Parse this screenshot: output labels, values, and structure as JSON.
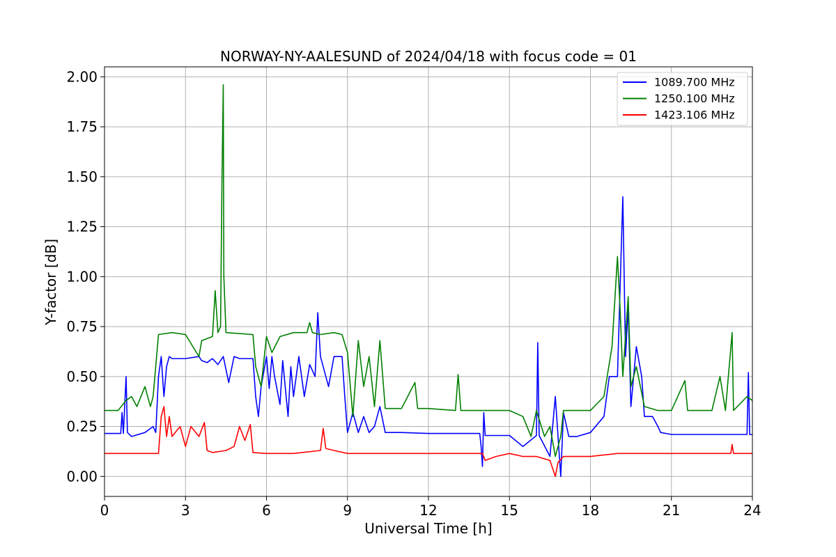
{
  "chart_data": {
    "type": "line",
    "title": "NORWAY-NY-AALESUND of 2024/04/18 with focus code = 01",
    "xlabel": "Universal Time [h]",
    "ylabel": "Y-factor [dB]",
    "xlim": [
      0,
      24
    ],
    "ylim": [
      -0.1,
      2.05
    ],
    "xticks": [
      0,
      3,
      6,
      9,
      12,
      15,
      18,
      21,
      24
    ],
    "xtick_labels": [
      "0",
      "3",
      "6",
      "9",
      "12",
      "15",
      "18",
      "21",
      "24"
    ],
    "yticks": [
      0.0,
      0.25,
      0.5,
      0.75,
      1.0,
      1.25,
      1.5,
      1.75,
      2.0
    ],
    "ytick_labels": [
      "0.00",
      "0.25",
      "0.50",
      "0.75",
      "1.00",
      "1.25",
      "1.50",
      "1.75",
      "2.00"
    ],
    "grid": true,
    "legend_position": "top-right",
    "series": [
      {
        "name": "1089.700 MHz",
        "color": "#0000ff",
        "points": [
          [
            0,
            0.215
          ],
          [
            0.6,
            0.215
          ],
          [
            0.65,
            0.32
          ],
          [
            0.7,
            0.215
          ],
          [
            0.8,
            0.5
          ],
          [
            0.85,
            0.22
          ],
          [
            1.0,
            0.2
          ],
          [
            1.5,
            0.22
          ],
          [
            1.8,
            0.25
          ],
          [
            1.9,
            0.22
          ],
          [
            2.0,
            0.5
          ],
          [
            2.1,
            0.6
          ],
          [
            2.2,
            0.4
          ],
          [
            2.3,
            0.55
          ],
          [
            2.4,
            0.6
          ],
          [
            2.5,
            0.59
          ],
          [
            3.0,
            0.59
          ],
          [
            3.5,
            0.6
          ],
          [
            3.6,
            0.58
          ],
          [
            3.8,
            0.57
          ],
          [
            4.0,
            0.59
          ],
          [
            4.2,
            0.56
          ],
          [
            4.4,
            0.6
          ],
          [
            4.6,
            0.47
          ],
          [
            4.8,
            0.6
          ],
          [
            5.0,
            0.59
          ],
          [
            5.5,
            0.59
          ],
          [
            5.6,
            0.4
          ],
          [
            5.7,
            0.3
          ],
          [
            5.8,
            0.45
          ],
          [
            6.0,
            0.6
          ],
          [
            6.1,
            0.44
          ],
          [
            6.2,
            0.6
          ],
          [
            6.3,
            0.5
          ],
          [
            6.5,
            0.36
          ],
          [
            6.6,
            0.58
          ],
          [
            6.8,
            0.3
          ],
          [
            6.9,
            0.55
          ],
          [
            7.0,
            0.4
          ],
          [
            7.2,
            0.6
          ],
          [
            7.4,
            0.4
          ],
          [
            7.6,
            0.56
          ],
          [
            7.8,
            0.5
          ],
          [
            7.9,
            0.82
          ],
          [
            8.0,
            0.6
          ],
          [
            8.3,
            0.45
          ],
          [
            8.5,
            0.6
          ],
          [
            8.8,
            0.6
          ],
          [
            8.9,
            0.4
          ],
          [
            9.0,
            0.22
          ],
          [
            9.2,
            0.32
          ],
          [
            9.4,
            0.22
          ],
          [
            9.6,
            0.3
          ],
          [
            9.8,
            0.22
          ],
          [
            10.0,
            0.25
          ],
          [
            10.2,
            0.35
          ],
          [
            10.4,
            0.22
          ],
          [
            11.0,
            0.22
          ],
          [
            12.0,
            0.215
          ],
          [
            13.9,
            0.215
          ],
          [
            13.95,
            0.15
          ],
          [
            14.0,
            0.05
          ],
          [
            14.05,
            0.32
          ],
          [
            14.1,
            0.205
          ],
          [
            15.0,
            0.205
          ],
          [
            15.5,
            0.15
          ],
          [
            16.0,
            0.205
          ],
          [
            16.05,
            0.67
          ],
          [
            16.1,
            0.205
          ],
          [
            16.5,
            0.1
          ],
          [
            16.7,
            0.4
          ],
          [
            16.9,
            0.0
          ],
          [
            17.0,
            0.32
          ],
          [
            17.2,
            0.2
          ],
          [
            17.5,
            0.2
          ],
          [
            18.0,
            0.22
          ],
          [
            18.5,
            0.3
          ],
          [
            18.7,
            0.5
          ],
          [
            19.0,
            0.5
          ],
          [
            19.2,
            1.4
          ],
          [
            19.3,
            0.6
          ],
          [
            19.4,
            0.85
          ],
          [
            19.5,
            0.35
          ],
          [
            19.7,
            0.65
          ],
          [
            19.9,
            0.5
          ],
          [
            20.0,
            0.3
          ],
          [
            20.3,
            0.3
          ],
          [
            20.5,
            0.25
          ],
          [
            20.6,
            0.22
          ],
          [
            21.0,
            0.21
          ],
          [
            23.8,
            0.21
          ],
          [
            23.85,
            0.52
          ],
          [
            23.9,
            0.21
          ],
          [
            24,
            0.21
          ]
        ]
      },
      {
        "name": "1250.100 MHz",
        "color": "#008000",
        "points": [
          [
            0,
            0.33
          ],
          [
            0.5,
            0.33
          ],
          [
            0.8,
            0.38
          ],
          [
            1.0,
            0.4
          ],
          [
            1.2,
            0.35
          ],
          [
            1.5,
            0.45
          ],
          [
            1.7,
            0.35
          ],
          [
            1.8,
            0.4
          ],
          [
            2.0,
            0.71
          ],
          [
            2.5,
            0.72
          ],
          [
            3.0,
            0.71
          ],
          [
            3.5,
            0.6
          ],
          [
            3.6,
            0.68
          ],
          [
            4.0,
            0.7
          ],
          [
            4.1,
            0.93
          ],
          [
            4.2,
            0.72
          ],
          [
            4.3,
            0.75
          ],
          [
            4.35,
            1.48
          ],
          [
            4.4,
            1.96
          ],
          [
            4.42,
            1.0
          ],
          [
            4.5,
            0.72
          ],
          [
            5.0,
            0.715
          ],
          [
            5.5,
            0.71
          ],
          [
            5.6,
            0.55
          ],
          [
            5.8,
            0.45
          ],
          [
            6.0,
            0.7
          ],
          [
            6.2,
            0.62
          ],
          [
            6.5,
            0.7
          ],
          [
            7.0,
            0.72
          ],
          [
            7.5,
            0.72
          ],
          [
            7.6,
            0.77
          ],
          [
            7.7,
            0.72
          ],
          [
            8.0,
            0.71
          ],
          [
            8.5,
            0.72
          ],
          [
            8.8,
            0.71
          ],
          [
            9.0,
            0.62
          ],
          [
            9.2,
            0.3
          ],
          [
            9.4,
            0.68
          ],
          [
            9.6,
            0.45
          ],
          [
            9.8,
            0.6
          ],
          [
            10.0,
            0.35
          ],
          [
            10.2,
            0.68
          ],
          [
            10.4,
            0.34
          ],
          [
            11.0,
            0.34
          ],
          [
            11.5,
            0.47
          ],
          [
            11.6,
            0.34
          ],
          [
            12.0,
            0.34
          ],
          [
            13.0,
            0.33
          ],
          [
            13.1,
            0.51
          ],
          [
            13.2,
            0.33
          ],
          [
            14.0,
            0.33
          ],
          [
            15.0,
            0.33
          ],
          [
            15.5,
            0.3
          ],
          [
            15.8,
            0.2
          ],
          [
            16.0,
            0.33
          ],
          [
            16.3,
            0.2
          ],
          [
            16.5,
            0.25
          ],
          [
            16.7,
            0.1
          ],
          [
            16.9,
            0.2
          ],
          [
            17.0,
            0.33
          ],
          [
            18.0,
            0.33
          ],
          [
            18.5,
            0.4
          ],
          [
            18.8,
            0.65
          ],
          [
            19.0,
            1.1
          ],
          [
            19.1,
            0.84
          ],
          [
            19.2,
            0.5
          ],
          [
            19.4,
            0.9
          ],
          [
            19.5,
            0.45
          ],
          [
            19.7,
            0.55
          ],
          [
            20.0,
            0.35
          ],
          [
            20.5,
            0.33
          ],
          [
            21.0,
            0.33
          ],
          [
            21.5,
            0.48
          ],
          [
            21.6,
            0.33
          ],
          [
            22.5,
            0.33
          ],
          [
            22.8,
            0.5
          ],
          [
            23.0,
            0.33
          ],
          [
            23.25,
            0.72
          ],
          [
            23.3,
            0.33
          ],
          [
            23.8,
            0.4
          ],
          [
            24,
            0.38
          ]
        ]
      },
      {
        "name": "1423.106 MHz",
        "color": "#ff0000",
        "points": [
          [
            0,
            0.115
          ],
          [
            2.0,
            0.115
          ],
          [
            2.1,
            0.3
          ],
          [
            2.2,
            0.35
          ],
          [
            2.3,
            0.2
          ],
          [
            2.4,
            0.3
          ],
          [
            2.5,
            0.2
          ],
          [
            2.8,
            0.25
          ],
          [
            3.0,
            0.15
          ],
          [
            3.2,
            0.25
          ],
          [
            3.5,
            0.2
          ],
          [
            3.7,
            0.27
          ],
          [
            3.8,
            0.13
          ],
          [
            4.0,
            0.12
          ],
          [
            4.5,
            0.13
          ],
          [
            4.8,
            0.15
          ],
          [
            5.0,
            0.25
          ],
          [
            5.2,
            0.18
          ],
          [
            5.4,
            0.26
          ],
          [
            5.5,
            0.12
          ],
          [
            6.0,
            0.115
          ],
          [
            7.0,
            0.115
          ],
          [
            8.0,
            0.13
          ],
          [
            8.1,
            0.24
          ],
          [
            8.2,
            0.14
          ],
          [
            8.5,
            0.13
          ],
          [
            9.0,
            0.115
          ],
          [
            10.0,
            0.115
          ],
          [
            14.0,
            0.115
          ],
          [
            14.1,
            0.08
          ],
          [
            14.5,
            0.1
          ],
          [
            15.0,
            0.115
          ],
          [
            15.5,
            0.1
          ],
          [
            16.0,
            0.1
          ],
          [
            16.5,
            0.08
          ],
          [
            16.7,
            0.0
          ],
          [
            16.8,
            0.07
          ],
          [
            17.0,
            0.1
          ],
          [
            18.0,
            0.1
          ],
          [
            19.0,
            0.115
          ],
          [
            23.2,
            0.115
          ],
          [
            23.25,
            0.16
          ],
          [
            23.3,
            0.115
          ],
          [
            24,
            0.115
          ]
        ]
      }
    ]
  }
}
